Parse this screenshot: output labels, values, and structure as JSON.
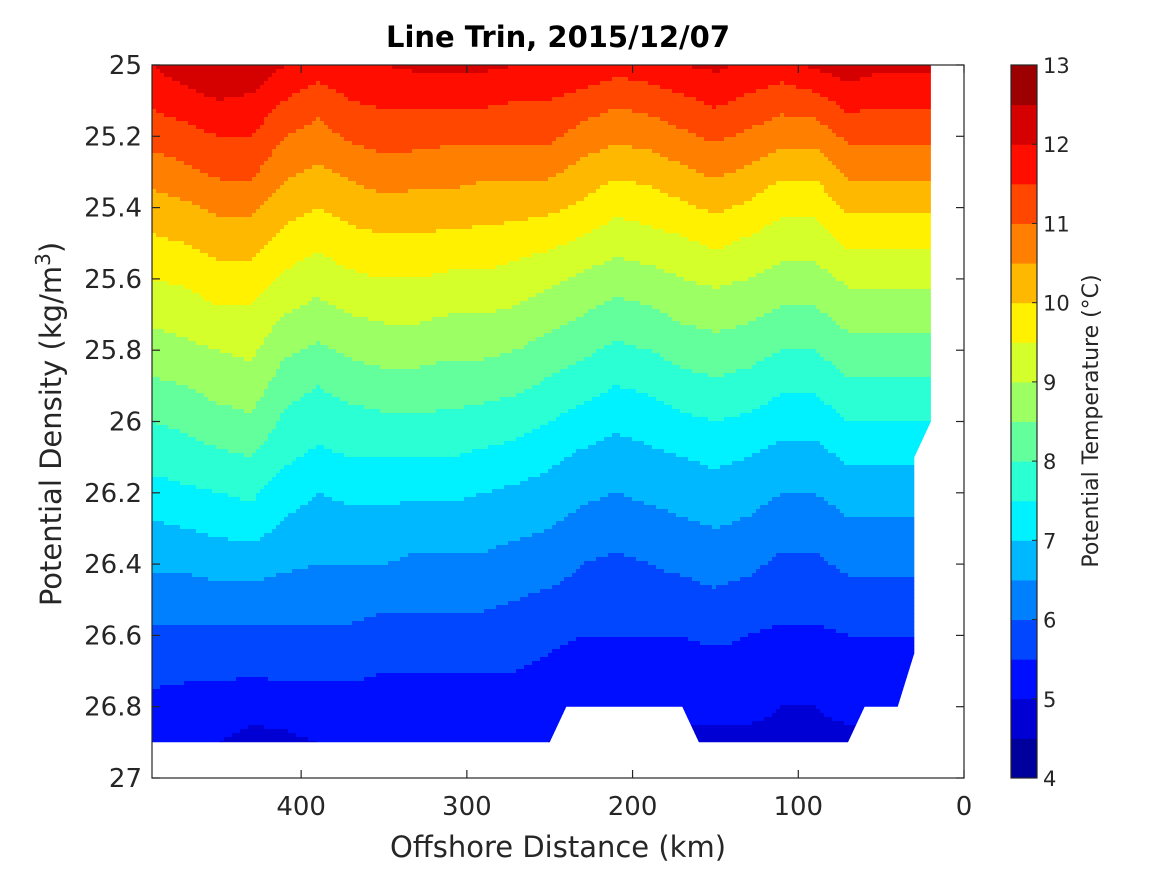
{
  "chart_data": {
    "type": "filled-contour",
    "title": "Line Trin, 2015/12/07",
    "xlabel": "Offshore Distance (km)",
    "ylabel_prefix": "Potential Density (kg/m",
    "ylabel_superscript": "3",
    "ylabel_suffix": ")",
    "colorbar_label": "Potential Temperature (°C)",
    "xlim": [
      490,
      0
    ],
    "ylim": [
      25,
      27
    ],
    "x_reversed": true,
    "y_reversed": true,
    "x_ticks": [
      400,
      300,
      200,
      100,
      0
    ],
    "x_tick_labels": [
      "400",
      "300",
      "200",
      "100",
      "0"
    ],
    "y_ticks": [
      25,
      25.2,
      25.4,
      25.6,
      25.8,
      26,
      26.2,
      26.4,
      26.6,
      26.8,
      27
    ],
    "y_tick_labels": [
      "25",
      "25.2",
      "25.4",
      "25.6",
      "25.8",
      "26",
      "26.2",
      "26.4",
      "26.6",
      "26.8",
      "27"
    ],
    "colorbar_ticks": [
      4,
      5,
      6,
      7,
      8,
      9,
      10,
      11,
      12,
      13
    ],
    "colorbar_tick_labels": [
      "4",
      "5",
      "6",
      "7",
      "8",
      "9",
      "10",
      "11",
      "12",
      "13"
    ],
    "colorbar_range": [
      4,
      13
    ],
    "colorbar_step": 0.5,
    "colormap": "jet",
    "stations_x": [
      490,
      470,
      450,
      430,
      410,
      390,
      370,
      350,
      330,
      310,
      290,
      270,
      250,
      230,
      210,
      190,
      170,
      150,
      130,
      110,
      90,
      70,
      50,
      30,
      20
    ],
    "levels_density": [
      25.0,
      25.1,
      25.2,
      25.3,
      25.4,
      25.5,
      25.6,
      25.7,
      25.8,
      25.9,
      26.0,
      26.1,
      26.2,
      26.3,
      26.4,
      26.5,
      26.6,
      26.7,
      26.8,
      26.9
    ],
    "temperature_grid": [
      [
        12.0,
        12.3,
        12.5,
        12.4,
        12.0,
        11.8,
        11.9,
        12.0,
        12.1,
        12.1,
        12.1,
        12.0,
        12.0,
        11.9,
        11.7,
        11.8,
        12.0,
        12.1,
        11.9,
        11.8,
        12.1,
        12.3,
        12.1,
        12.1,
        12.1
      ],
      [
        11.6,
        11.8,
        12.0,
        11.9,
        11.5,
        11.2,
        11.5,
        11.6,
        11.6,
        11.6,
        11.6,
        11.5,
        11.5,
        11.3,
        11.1,
        11.2,
        11.4,
        11.6,
        11.4,
        11.2,
        11.3,
        11.7,
        11.6,
        11.6,
        11.6
      ],
      [
        11.2,
        11.3,
        11.5,
        11.5,
        11.0,
        10.8,
        11.1,
        11.2,
        11.2,
        11.1,
        11.1,
        11.1,
        11.1,
        10.8,
        10.6,
        10.7,
        10.9,
        11.1,
        10.9,
        10.7,
        10.7,
        11.1,
        11.1,
        11.1,
        11.1
      ],
      [
        10.7,
        10.9,
        11.1,
        11.1,
        10.6,
        10.4,
        10.6,
        10.8,
        10.7,
        10.7,
        10.6,
        10.6,
        10.6,
        10.3,
        10.1,
        10.2,
        10.4,
        10.6,
        10.4,
        10.1,
        10.1,
        10.6,
        10.6,
        10.6,
        10.6
      ],
      [
        10.3,
        10.4,
        10.6,
        10.6,
        10.2,
        10.0,
        10.2,
        10.3,
        10.3,
        10.3,
        10.2,
        10.2,
        10.1,
        9.9,
        9.6,
        9.7,
        9.9,
        10.1,
        9.9,
        9.6,
        9.6,
        10.1,
        10.1,
        10.1,
        10.1
      ],
      [
        9.9,
        10.0,
        10.2,
        10.2,
        9.8,
        9.6,
        9.8,
        9.9,
        9.9,
        9.8,
        9.8,
        9.7,
        9.6,
        9.4,
        9.2,
        9.3,
        9.4,
        9.6,
        9.4,
        9.2,
        9.2,
        9.6,
        9.6,
        9.6,
        9.6
      ],
      [
        9.5,
        9.6,
        9.8,
        9.8,
        9.4,
        9.2,
        9.4,
        9.5,
        9.5,
        9.4,
        9.4,
        9.3,
        9.1,
        8.9,
        8.7,
        8.8,
        9.0,
        9.1,
        9.0,
        8.8,
        8.8,
        9.1,
        9.1,
        9.1,
        9.1
      ],
      [
        9.1,
        9.2,
        9.4,
        9.4,
        9.0,
        8.8,
        9.0,
        9.1,
        9.1,
        9.0,
        9.0,
        8.9,
        8.7,
        8.5,
        8.3,
        8.4,
        8.6,
        8.7,
        8.6,
        8.4,
        8.4,
        8.7,
        8.7,
        8.7,
        8.7
      ],
      [
        8.8,
        8.9,
        9.0,
        9.1,
        8.6,
        8.4,
        8.6,
        8.7,
        8.7,
        8.6,
        8.6,
        8.5,
        8.3,
        8.1,
        7.9,
        8.0,
        8.2,
        8.3,
        8.2,
        8.0,
        8.0,
        8.3,
        8.3,
        8.3,
        8.3
      ],
      [
        8.4,
        8.5,
        8.7,
        8.8,
        8.2,
        8.0,
        8.2,
        8.3,
        8.3,
        8.2,
        8.2,
        8.1,
        7.9,
        7.7,
        7.5,
        7.6,
        7.8,
        7.9,
        7.8,
        7.6,
        7.6,
        7.9,
        7.9,
        7.9,
        7.9
      ],
      [
        8.0,
        8.1,
        8.3,
        8.4,
        7.9,
        7.7,
        7.8,
        7.9,
        7.9,
        7.9,
        7.8,
        7.7,
        7.5,
        7.3,
        7.1,
        7.2,
        7.4,
        7.5,
        7.4,
        7.2,
        7.2,
        7.5,
        7.5,
        7.5,
        7.5
      ],
      [
        7.7,
        7.8,
        7.9,
        8.0,
        7.6,
        7.4,
        7.5,
        7.5,
        7.5,
        7.5,
        7.4,
        7.3,
        7.1,
        6.9,
        6.8,
        6.9,
        7.0,
        7.1,
        7.0,
        6.8,
        6.8,
        7.1,
        7.1,
        7.1,
        7.1
      ],
      [
        7.3,
        7.4,
        7.5,
        7.6,
        7.2,
        7.0,
        7.1,
        7.1,
        7.1,
        7.1,
        7.0,
        6.9,
        6.8,
        6.6,
        6.5,
        6.6,
        6.7,
        6.8,
        6.7,
        6.5,
        6.5,
        6.7,
        6.7,
        6.7,
        6.7
      ],
      [
        6.9,
        7.0,
        7.1,
        7.2,
        6.9,
        6.8,
        6.8,
        6.8,
        6.7,
        6.7,
        6.7,
        6.6,
        6.5,
        6.3,
        6.2,
        6.3,
        6.4,
        6.5,
        6.4,
        6.2,
        6.2,
        6.4,
        6.4,
        6.4,
        6.4
      ],
      [
        6.6,
        6.6,
        6.7,
        6.7,
        6.6,
        6.5,
        6.5,
        6.5,
        6.4,
        6.4,
        6.4,
        6.3,
        6.2,
        6.0,
        5.9,
        6.0,
        6.1,
        6.2,
        6.1,
        5.9,
        5.9,
        6.1,
        6.1,
        6.1,
        6.1
      ],
      [
        6.2,
        6.2,
        6.3,
        6.3,
        6.2,
        6.2,
        6.2,
        6.1,
        6.1,
        6.1,
        6.1,
        6.0,
        5.9,
        5.8,
        5.7,
        5.8,
        5.8,
        5.9,
        5.8,
        5.7,
        5.7,
        5.8,
        5.8,
        5.8,
        5.8
      ],
      [
        5.9,
        5.9,
        5.9,
        5.9,
        5.9,
        5.9,
        5.9,
        5.8,
        5.8,
        5.8,
        5.8,
        5.7,
        5.6,
        5.5,
        5.5,
        5.5,
        5.5,
        5.6,
        5.5,
        5.4,
        5.4,
        5.5,
        5.5,
        5.5,
        5.5
      ],
      [
        5.6,
        5.6,
        5.6,
        5.6,
        5.6,
        5.6,
        5.6,
        5.5,
        5.5,
        5.5,
        5.5,
        5.5,
        5.4,
        5.3,
        5.3,
        5.3,
        5.3,
        5.3,
        5.3,
        5.2,
        5.2,
        5.3,
        5.3,
        5.3,
        5.3
      ],
      [
        5.4,
        5.3,
        5.2,
        5.1,
        5.2,
        5.3,
        5.3,
        5.3,
        5.3,
        5.3,
        5.3,
        5.2,
        5.2,
        5.1,
        5.1,
        5.1,
        5.1,
        5.1,
        5.1,
        5.0,
        5.0,
        5.1,
        5.1,
        5.1,
        5.1
      ],
      [
        5.1,
        5.0,
        5.0,
        4.9,
        4.9,
        5.0,
        5.1,
        5.1,
        5.1,
        5.1,
        5.1,
        5.0,
        5.0,
        4.9,
        4.9,
        4.9,
        4.9,
        4.9,
        4.9,
        4.9,
        4.9,
        4.9,
        4.9,
        4.9,
        4.9
      ]
    ],
    "data_domain_outline": [
      [
        490,
        25.0
      ],
      [
        20,
        25.0
      ],
      [
        20,
        26.0
      ],
      [
        30,
        26.1
      ],
      [
        30,
        26.65
      ],
      [
        40,
        26.8
      ],
      [
        60,
        26.8
      ],
      [
        70,
        26.9
      ],
      [
        160,
        26.9
      ],
      [
        170,
        26.8
      ],
      [
        240,
        26.8
      ],
      [
        250,
        26.9
      ],
      [
        490,
        26.9
      ]
    ]
  }
}
